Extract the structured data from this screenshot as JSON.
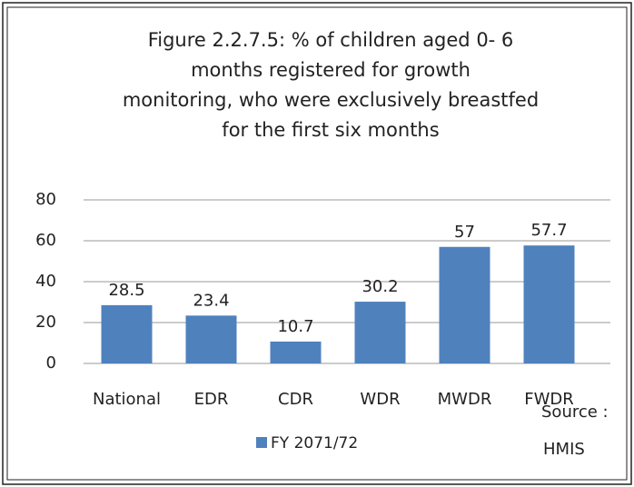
{
  "chart_data": {
    "type": "bar",
    "title": [
      "Figure 2.2.7.5: % of children aged 0- 6",
      "months registered for growth",
      "monitoring, who were exclusively breastfed",
      "for the first six months"
    ],
    "categories": [
      "National",
      "EDR",
      "CDR",
      "WDR",
      "MWDR",
      "FWDR"
    ],
    "series": [
      {
        "name": "FY 2071/72",
        "color": "#4f81bd",
        "values": [
          28.5,
          23.4,
          10.7,
          30.2,
          57,
          57.7
        ]
      }
    ],
    "ylim": [
      0,
      80
    ],
    "yticks": [
      0,
      20,
      40,
      60,
      80
    ],
    "grid": true,
    "source": [
      "Source :",
      "HMIS"
    ]
  }
}
